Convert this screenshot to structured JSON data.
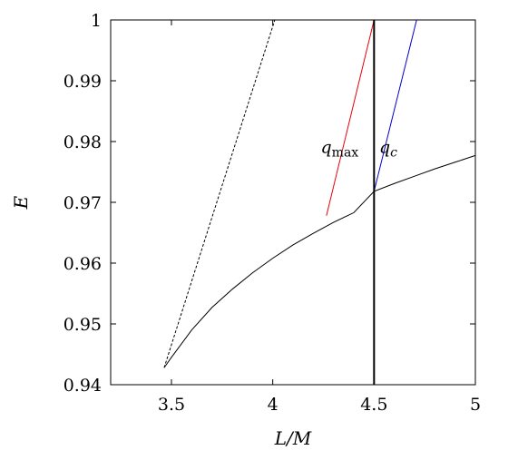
{
  "chart_data": {
    "type": "line",
    "xlabel": "L/M",
    "ylabel": "E",
    "xlim": [
      3.2,
      5.0
    ],
    "ylim": [
      0.94,
      1.0
    ],
    "xticks": [
      {
        "value": 3.5,
        "label": "3.5"
      },
      {
        "value": 4.0,
        "label": "4"
      },
      {
        "value": 4.5,
        "label": "4.5"
      },
      {
        "value": 5.0,
        "label": "5"
      }
    ],
    "yticks": [
      {
        "value": 0.94,
        "label": "0.94"
      },
      {
        "value": 0.95,
        "label": "0.95"
      },
      {
        "value": 0.96,
        "label": "0.96"
      },
      {
        "value": 0.97,
        "label": "0.97"
      },
      {
        "value": 0.98,
        "label": "0.98"
      },
      {
        "value": 0.99,
        "label": "0.99"
      },
      {
        "value": 1.0,
        "label": "1"
      }
    ],
    "grid": false,
    "legend": "none",
    "series": [
      {
        "color": "#000000",
        "style": "solid",
        "x": [
          3.464,
          3.5,
          3.6,
          3.7,
          3.8,
          3.9,
          4.0,
          4.1,
          4.2,
          4.3,
          4.4,
          4.5,
          4.6,
          4.7,
          4.8,
          4.9,
          5.0
        ],
        "y": [
          0.9428,
          0.9445,
          0.949,
          0.9527,
          0.9557,
          0.9584,
          0.9608,
          0.963,
          0.9649,
          0.9667,
          0.9683,
          0.9718,
          0.9731,
          0.9743,
          0.9755,
          0.9766,
          0.9777
        ]
      },
      {
        "color": "#000000",
        "style": "dashed",
        "x": [
          3.464,
          4.01
        ],
        "y": [
          0.9428,
          1.0
        ]
      },
      {
        "color": "#e8000b",
        "style": "solid",
        "x": [
          4.265,
          4.5
        ],
        "y": [
          0.9678,
          1.0
        ]
      },
      {
        "color": "#0000cc",
        "style": "solid",
        "x": [
          4.5,
          4.71
        ],
        "y": [
          0.9718,
          1.0
        ]
      },
      {
        "color": "#000000",
        "style": "solid-thick",
        "x": [
          4.5,
          4.5
        ],
        "y": [
          0.94,
          1.0
        ]
      }
    ],
    "annotations": [
      {
        "text": "q",
        "sub": "max",
        "x": 4.33,
        "y": 0.979
      },
      {
        "text": "q",
        "sub": "c",
        "x": 4.57,
        "y": 0.979
      }
    ]
  }
}
